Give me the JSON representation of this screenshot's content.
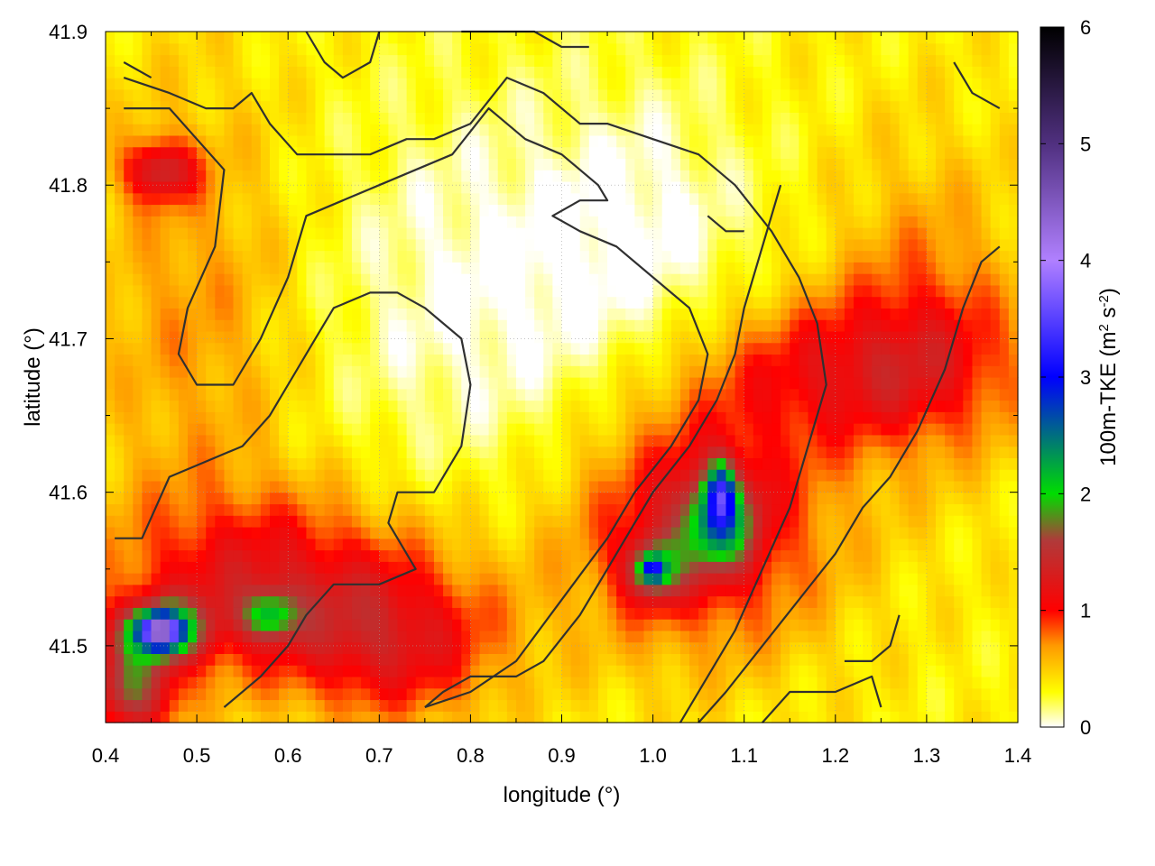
{
  "chart_data": {
    "type": "heatmap",
    "title": "",
    "xlabel": "longitude (°)",
    "ylabel": "latitude (°)",
    "xlim": [
      0.4,
      1.4
    ],
    "ylim": [
      41.45,
      41.9
    ],
    "x_ticks": [
      "0.4",
      "0.5",
      "0.6",
      "0.7",
      "0.8",
      "0.9",
      "1.0",
      "1.1",
      "1.2",
      "1.3",
      "1.4"
    ],
    "y_ticks": [
      "41.5",
      "41.6",
      "41.7",
      "41.8",
      "41.9"
    ],
    "grid": true,
    "colorbar": {
      "label_parts": [
        "100m-TKE (m",
        "2",
        " s",
        "-2",
        ")"
      ],
      "range": [
        0,
        6
      ],
      "ticks": [
        "0",
        "1",
        "2",
        "3",
        "4",
        "5",
        "6"
      ],
      "stops": [
        {
          "value": 0.0,
          "color": "#ffffff"
        },
        {
          "value": 0.3,
          "color": "#ffff00"
        },
        {
          "value": 0.7,
          "color": "#ff9900"
        },
        {
          "value": 1.0,
          "color": "#ff0000"
        },
        {
          "value": 1.6,
          "color": "#b03a3a"
        },
        {
          "value": 2.0,
          "color": "#00dd00"
        },
        {
          "value": 3.0,
          "color": "#0000ff"
        },
        {
          "value": 4.0,
          "color": "#b080ff"
        },
        {
          "value": 5.0,
          "color": "#503080"
        },
        {
          "value": 6.0,
          "color": "#000000"
        }
      ]
    },
    "field_features": [
      {
        "name": "background",
        "lon": 0.9,
        "lat": 41.67,
        "value": 0.35,
        "lon_r": 2.0,
        "lat_r": 1.0,
        "shape": "bg"
      },
      {
        "name": "central-low",
        "lon": 0.82,
        "lat": 41.73,
        "value": -0.35,
        "lon_r": 0.2,
        "lat_r": 0.13
      },
      {
        "name": "northeast-low",
        "lon": 1.0,
        "lat": 41.77,
        "value": -0.25,
        "lon_r": 0.12,
        "lat_r": 0.1
      },
      {
        "name": "west-band",
        "lon": 0.5,
        "lat": 41.72,
        "value": 0.35,
        "lon_r": 0.12,
        "lat_r": 0.15
      },
      {
        "name": "nw-hotspot",
        "lon": 0.46,
        "lat": 41.81,
        "value": 0.9,
        "lon_r": 0.04,
        "lat_r": 0.02
      },
      {
        "name": "southwest-red",
        "lon": 0.58,
        "lat": 41.54,
        "value": 0.8,
        "lon_r": 0.18,
        "lat_r": 0.06
      },
      {
        "name": "south-red",
        "lon": 0.72,
        "lat": 41.5,
        "value": 0.7,
        "lon_r": 0.12,
        "lat_r": 0.05
      },
      {
        "name": "southeast-red",
        "lon": 1.05,
        "lat": 41.58,
        "value": 0.9,
        "lon_r": 0.14,
        "lat_r": 0.08
      },
      {
        "name": "east-red-ridge",
        "lon": 1.22,
        "lat": 41.68,
        "value": 0.7,
        "lon_r": 0.18,
        "lat_r": 0.05
      },
      {
        "name": "far-east",
        "lon": 1.3,
        "lat": 41.72,
        "value": 0.4,
        "lon_r": 0.1,
        "lat_r": 0.1
      },
      {
        "name": "green-core",
        "lon": 1.07,
        "lat": 41.58,
        "value": 1.3,
        "lon_r": 0.04,
        "lat_r": 0.03
      },
      {
        "name": "blue-core",
        "lon": 1.075,
        "lat": 41.6,
        "value": 1.5,
        "lon_r": 0.015,
        "lat_r": 0.02
      },
      {
        "name": "green-south",
        "lon": 1.0,
        "lat": 41.55,
        "value": 1.1,
        "lon_r": 0.03,
        "lat_r": 0.02
      },
      {
        "name": "blue-south",
        "lon": 1.0,
        "lat": 41.55,
        "value": 1.2,
        "lon_r": 0.012,
        "lat_r": 0.008
      },
      {
        "name": "sw-green",
        "lon": 0.46,
        "lat": 41.51,
        "value": 1.6,
        "lon_r": 0.05,
        "lat_r": 0.02
      },
      {
        "name": "sw-violet",
        "lon": 0.46,
        "lat": 41.51,
        "value": 2.3,
        "lon_r": 0.02,
        "lat_r": 0.01
      },
      {
        "name": "sw-green-2",
        "lon": 0.58,
        "lat": 41.52,
        "value": 1.0,
        "lon_r": 0.03,
        "lat_r": 0.015
      },
      {
        "name": "corner-green",
        "lon": 0.43,
        "lat": 41.47,
        "value": 1.2,
        "lon_r": 0.05,
        "lat_r": 0.03
      }
    ],
    "contours": [
      [
        [
          0.42,
          41.87
        ],
        [
          0.47,
          41.86
        ],
        [
          0.51,
          41.85
        ],
        [
          0.54,
          41.85
        ],
        [
          0.56,
          41.86
        ],
        [
          0.58,
          41.84
        ],
        [
          0.61,
          41.82
        ],
        [
          0.65,
          41.82
        ],
        [
          0.69,
          41.82
        ],
        [
          0.73,
          41.83
        ],
        [
          0.76,
          41.83
        ],
        [
          0.8,
          41.84
        ],
        [
          0.84,
          41.87
        ],
        [
          0.88,
          41.86
        ],
        [
          0.92,
          41.84
        ],
        [
          0.95,
          41.84
        ],
        [
          1.0,
          41.83
        ],
        [
          1.05,
          41.82
        ],
        [
          1.09,
          41.8
        ],
        [
          1.13,
          41.77
        ],
        [
          1.16,
          41.74
        ],
        [
          1.18,
          41.71
        ],
        [
          1.19,
          41.67
        ],
        [
          1.17,
          41.63
        ],
        [
          1.15,
          41.59
        ],
        [
          1.12,
          41.55
        ],
        [
          1.09,
          41.51
        ],
        [
          1.06,
          41.48
        ],
        [
          1.03,
          41.45
        ]
      ],
      [
        [
          0.42,
          41.85
        ],
        [
          0.47,
          41.85
        ],
        [
          0.5,
          41.83
        ],
        [
          0.53,
          41.81
        ],
        [
          0.52,
          41.76
        ],
        [
          0.49,
          41.72
        ],
        [
          0.48,
          41.69
        ],
        [
          0.5,
          41.67
        ],
        [
          0.54,
          41.67
        ],
        [
          0.57,
          41.7
        ],
        [
          0.6,
          41.74
        ],
        [
          0.62,
          41.78
        ],
        [
          0.66,
          41.79
        ],
        [
          0.7,
          41.8
        ],
        [
          0.74,
          41.81
        ],
        [
          0.78,
          41.82
        ],
        [
          0.82,
          41.85
        ],
        [
          0.86,
          41.83
        ],
        [
          0.9,
          41.82
        ],
        [
          0.94,
          41.8
        ],
        [
          0.95,
          41.79
        ],
        [
          0.92,
          41.79
        ],
        [
          0.89,
          41.78
        ],
        [
          0.92,
          41.77
        ],
        [
          0.96,
          41.76
        ],
        [
          1.0,
          41.74
        ],
        [
          1.04,
          41.72
        ],
        [
          1.06,
          41.69
        ],
        [
          1.05,
          41.66
        ],
        [
          1.02,
          41.63
        ],
        [
          0.98,
          41.6
        ],
        [
          0.95,
          41.57
        ],
        [
          0.9,
          41.53
        ],
        [
          0.85,
          41.49
        ],
        [
          0.8,
          41.47
        ],
        [
          0.75,
          41.46
        ]
      ],
      [
        [
          0.41,
          41.57
        ],
        [
          0.44,
          41.57
        ],
        [
          0.47,
          41.61
        ],
        [
          0.51,
          41.62
        ],
        [
          0.55,
          41.63
        ],
        [
          0.58,
          41.65
        ],
        [
          0.61,
          41.68
        ],
        [
          0.63,
          41.7
        ],
        [
          0.65,
          41.72
        ],
        [
          0.69,
          41.73
        ],
        [
          0.72,
          41.73
        ],
        [
          0.75,
          41.72
        ],
        [
          0.79,
          41.7
        ],
        [
          0.8,
          41.67
        ],
        [
          0.79,
          41.63
        ],
        [
          0.76,
          41.6
        ],
        [
          0.72,
          41.6
        ],
        [
          0.71,
          41.58
        ],
        [
          0.74,
          41.55
        ],
        [
          0.7,
          41.54
        ],
        [
          0.65,
          41.54
        ],
        [
          0.62,
          41.52
        ],
        [
          0.6,
          41.5
        ],
        [
          0.57,
          41.48
        ],
        [
          0.53,
          41.46
        ]
      ],
      [
        [
          0.75,
          41.46
        ],
        [
          0.77,
          41.47
        ],
        [
          0.8,
          41.48
        ],
        [
          0.82,
          41.48
        ],
        [
          0.85,
          41.48
        ],
        [
          0.88,
          41.49
        ],
        [
          0.92,
          41.52
        ],
        [
          0.95,
          41.55
        ],
        [
          0.98,
          41.58
        ],
        [
          1.0,
          41.6
        ],
        [
          1.04,
          41.63
        ],
        [
          1.07,
          41.66
        ],
        [
          1.09,
          41.69
        ],
        [
          1.1,
          41.72
        ],
        [
          1.12,
          41.76
        ],
        [
          1.14,
          41.8
        ]
      ],
      [
        [
          0.42,
          41.88
        ],
        [
          0.45,
          41.87
        ]
      ],
      [
        [
          0.62,
          41.9
        ],
        [
          0.64,
          41.88
        ],
        [
          0.66,
          41.87
        ],
        [
          0.69,
          41.88
        ],
        [
          0.7,
          41.9
        ]
      ],
      [
        [
          0.79,
          41.9
        ],
        [
          0.83,
          41.9
        ],
        [
          0.87,
          41.9
        ],
        [
          0.9,
          41.89
        ],
        [
          0.93,
          41.89
        ]
      ],
      [
        [
          1.25,
          41.46
        ],
        [
          1.24,
          41.48
        ],
        [
          1.2,
          41.47
        ],
        [
          1.15,
          41.47
        ],
        [
          1.12,
          41.45
        ]
      ],
      [
        [
          1.33,
          41.88
        ],
        [
          1.35,
          41.86
        ],
        [
          1.38,
          41.85
        ]
      ],
      [
        [
          1.38,
          41.76
        ],
        [
          1.36,
          41.75
        ],
        [
          1.34,
          41.72
        ],
        [
          1.32,
          41.68
        ],
        [
          1.29,
          41.64
        ],
        [
          1.26,
          41.61
        ],
        [
          1.23,
          41.59
        ],
        [
          1.2,
          41.56
        ],
        [
          1.16,
          41.53
        ],
        [
          1.12,
          41.5
        ],
        [
          1.08,
          41.47
        ],
        [
          1.05,
          41.45
        ]
      ],
      [
        [
          1.27,
          41.52
        ],
        [
          1.26,
          41.5
        ],
        [
          1.24,
          41.49
        ],
        [
          1.21,
          41.49
        ]
      ],
      [
        [
          1.06,
          41.78
        ],
        [
          1.08,
          41.77
        ],
        [
          1.1,
          41.77
        ]
      ]
    ]
  }
}
